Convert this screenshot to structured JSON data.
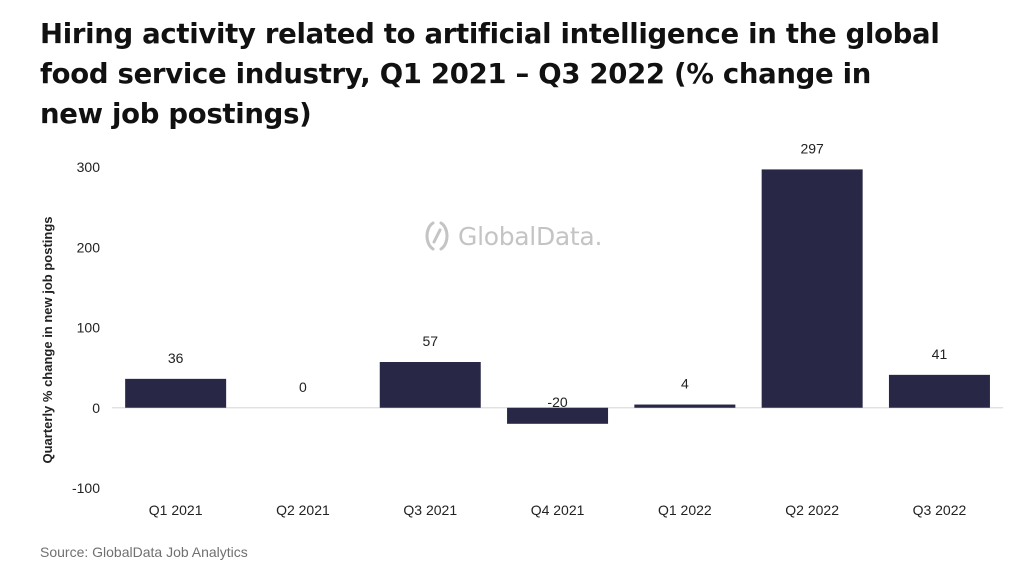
{
  "header": {
    "title": "Hiring activity related to artificial intelligence in the global food service industry, Q1 2021 – Q3 2022 (% change in new job postings)"
  },
  "watermark": {
    "text": "GlobalData.",
    "icon": "globaldata-logo-icon"
  },
  "footer": {
    "source": "Source: GlobalData Job Analytics"
  },
  "colors": {
    "bar": "#282846",
    "axis_text": "#222222",
    "zero_line": "#dddddd",
    "watermark": "#c4c4c4"
  },
  "chart_data": {
    "type": "bar",
    "title": "Hiring activity related to artificial intelligence in the global food service industry, Q1 2021 – Q3 2022 (% change in new job postings)",
    "xlabel": "",
    "ylabel": "Quarterly % change in new job postings",
    "categories": [
      "Q1 2021",
      "Q2 2021",
      "Q3 2021",
      "Q4 2021",
      "Q1 2022",
      "Q2 2022",
      "Q3 2022"
    ],
    "values": [
      36,
      0,
      57,
      -20,
      4,
      297,
      41
    ],
    "value_labels": [
      "36",
      "0",
      "57",
      "-20",
      "4",
      "297",
      "41"
    ],
    "ylim": [
      -100,
      300
    ],
    "yticks": [
      -100,
      0,
      100,
      200,
      300
    ],
    "ytick_labels": [
      "-100",
      "0",
      "100",
      "200",
      "300"
    ],
    "grid": false,
    "legend": "none"
  }
}
